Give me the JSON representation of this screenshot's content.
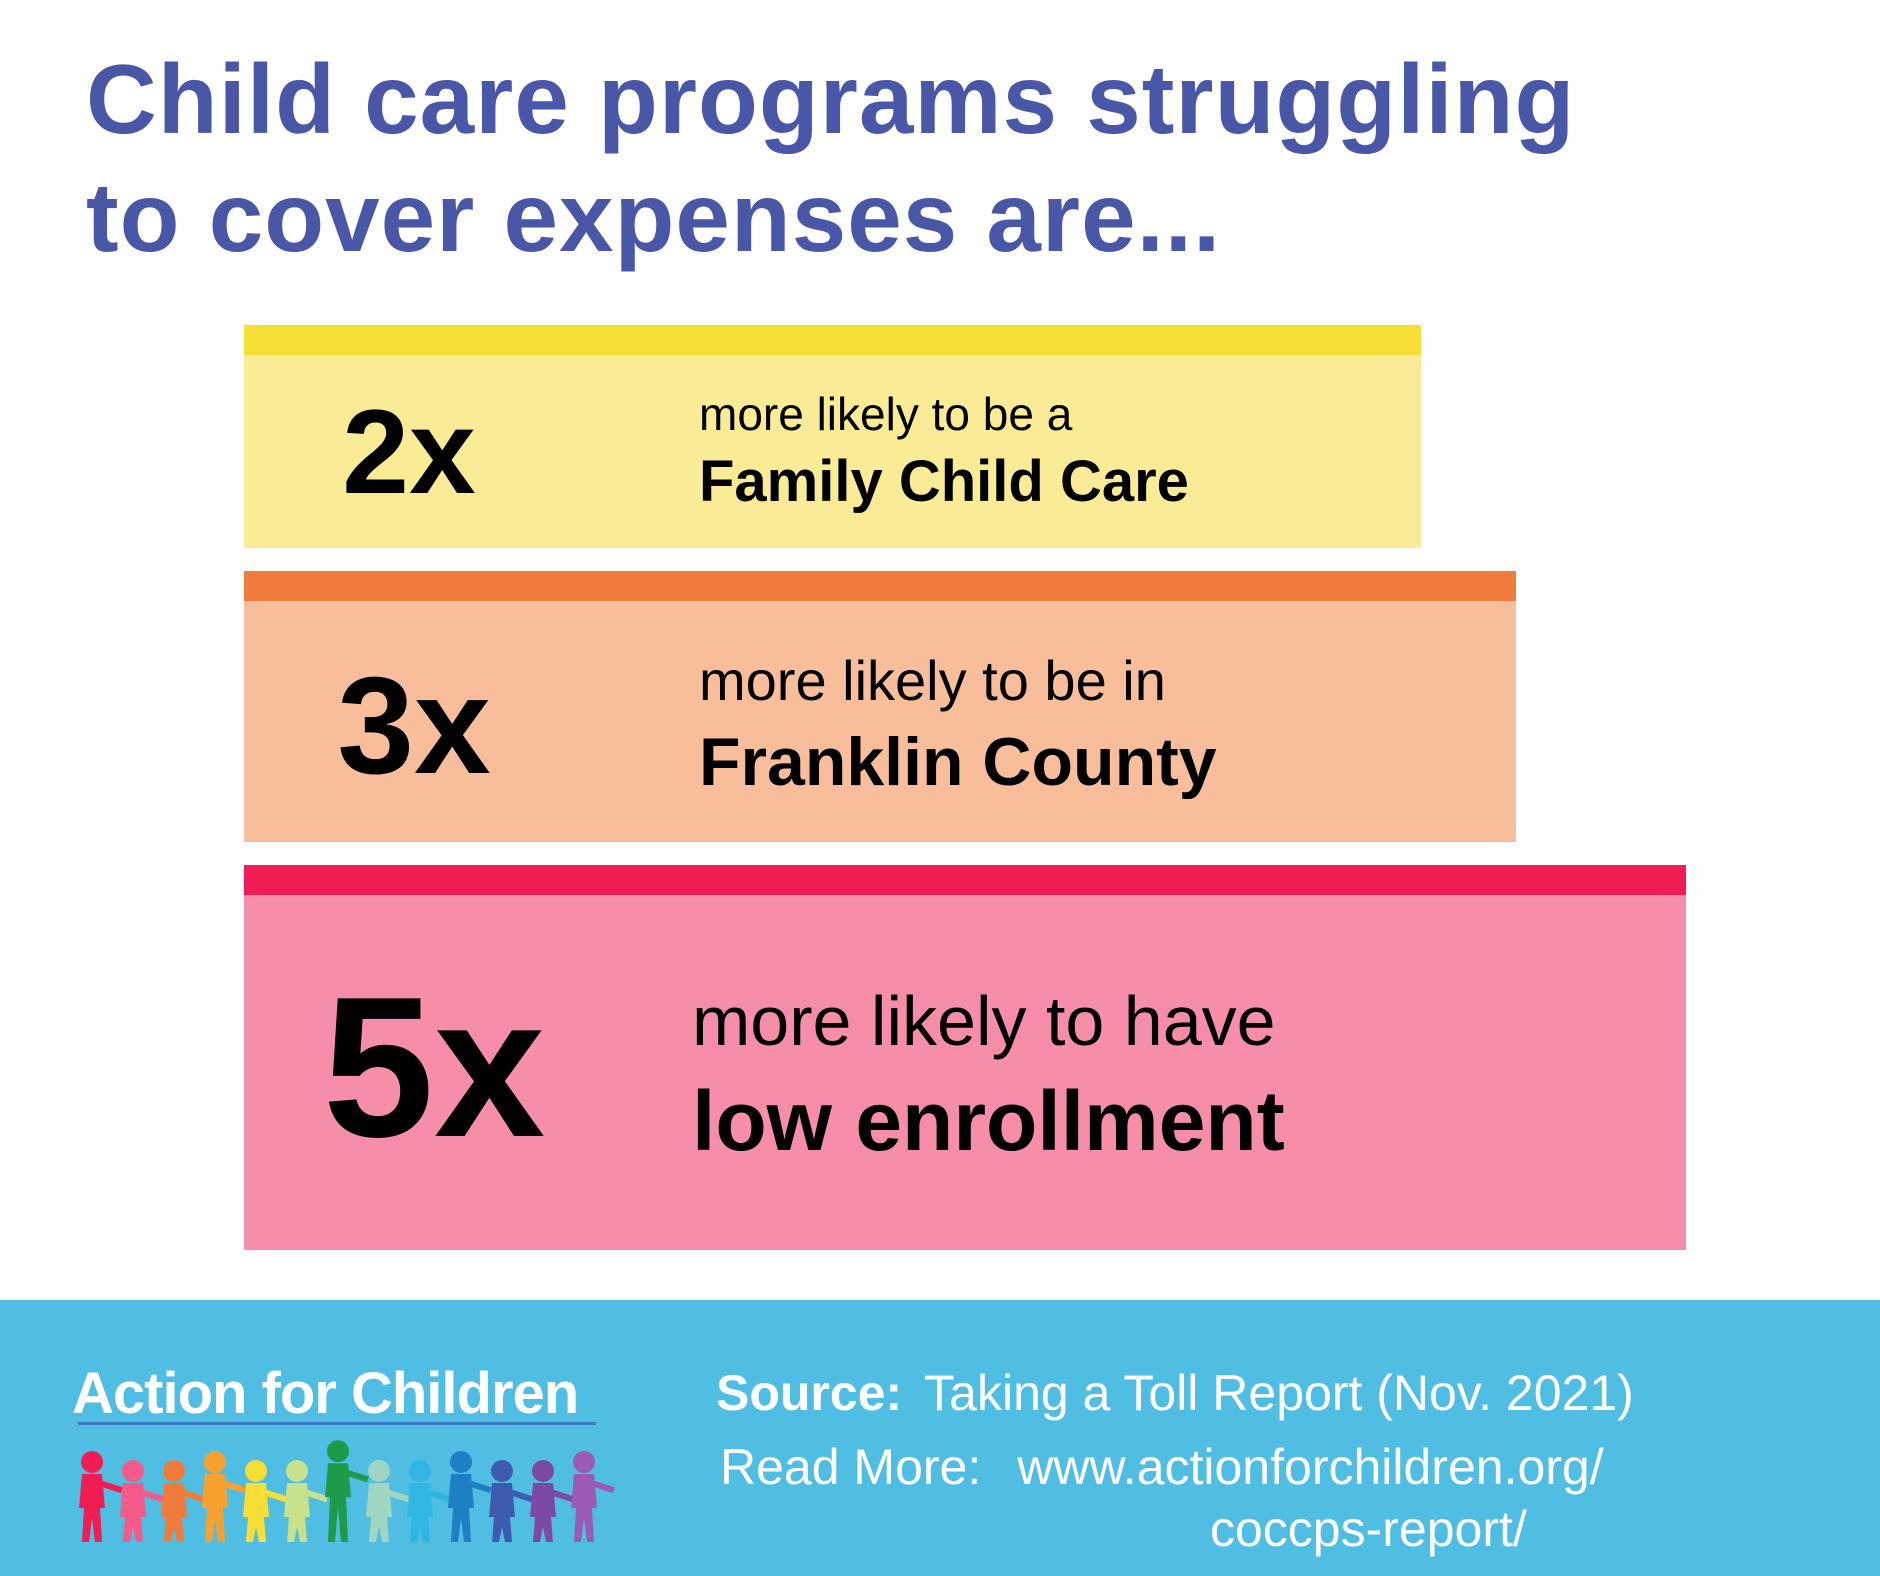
{
  "title": {
    "line1": "Child care programs struggling",
    "line2": "to cover expenses are..."
  },
  "stats": [
    {
      "multiplier": "2x",
      "lead": "more likely to be a",
      "emphasis": "Family Child Care",
      "bar_color": "#f7de35",
      "fill_color": "#faec96"
    },
    {
      "multiplier": "3x",
      "lead": "more likely to be in",
      "emphasis": "Franklin County",
      "bar_color": "#f07c3c",
      "fill_color": "#f8be9c"
    },
    {
      "multiplier": "5x",
      "lead": "more likely to have",
      "emphasis": "low enrollment",
      "bar_color": "#ef1d53",
      "fill_color": "#f78ea9"
    }
  ],
  "footer": {
    "background": "#50bde3",
    "brand": "Action for Children",
    "source_label": "Source:",
    "source_text": "Taking a Toll Report (Nov. 2021)",
    "read_more_label": "Read More:",
    "url_line1": "www.actionforchildren.org/",
    "url_line2": "coccps-report/"
  },
  "colors": {
    "title": "#4a56a6",
    "kids": [
      "#ef1d53",
      "#f45a8a",
      "#f07c3c",
      "#f9a12e",
      "#f7de35",
      "#c8e28c",
      "#1f9a4a",
      "#9fd6c2",
      "#2fb6e3",
      "#1e7fc2",
      "#3f5bb0",
      "#7b4aa6",
      "#9b5bb5"
    ]
  }
}
